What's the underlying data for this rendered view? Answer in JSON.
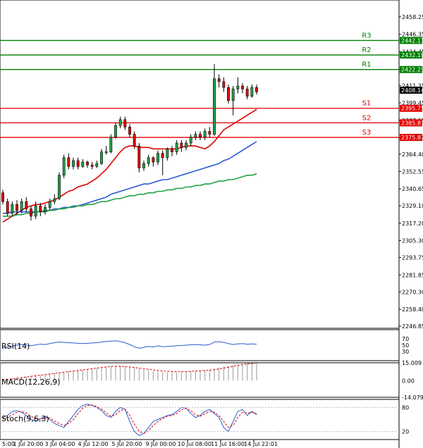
{
  "chart_data": {
    "type": "candlestick",
    "instrument_price_last": "2408.14",
    "y_axis": {
      "min": 2246.85,
      "max": 2464.0,
      "ticks": [
        "2458.25",
        "2446.35",
        "2434.45",
        "2422.55",
        "2411.35",
        "2399.45",
        "2387.55",
        "2375.65",
        "2364.40",
        "2352.55",
        "2340.65",
        "2329.10",
        "2317.20",
        "2305.30",
        "2293.75",
        "2281.85",
        "2270.30",
        "2258.40",
        "2246.85"
      ]
    },
    "x_axis": {
      "ticks": [
        "5:00",
        "1 Jul 20:00",
        "3 Jul 04:00",
        "4 Jul 12:00",
        "5 Jul 20:00",
        "9 Jul 00:00",
        "10 Jul 08:00",
        "11 Jul 16:00",
        "14 Jul 22:01"
      ]
    },
    "levels": [
      {
        "name": "R3",
        "value": 2442.13,
        "label": "2442.13",
        "color": "#008000"
      },
      {
        "name": "R2",
        "value": 2432.19,
        "label": "2432.19",
        "color": "#008000"
      },
      {
        "name": "R1",
        "value": 2422.25,
        "label": "2422.25",
        "color": "#008000"
      },
      {
        "name": "S1",
        "value": 2395.75,
        "label": "2395.75",
        "color": "#e00000"
      },
      {
        "name": "S2",
        "value": 2385.81,
        "label": "2385.81",
        "color": "#e00000"
      },
      {
        "name": "S3",
        "value": 2375.87,
        "label": "2375.87",
        "color": "#e00000"
      }
    ],
    "candles": [
      [
        2338,
        2332,
        2340,
        2330
      ],
      [
        2332,
        2324,
        2334,
        2322
      ],
      [
        2324,
        2330,
        2332,
        2322
      ],
      [
        2330,
        2326,
        2333,
        2323
      ],
      [
        2326,
        2332,
        2334,
        2324
      ],
      [
        2332,
        2327,
        2335,
        2325
      ],
      [
        2327,
        2322,
        2329,
        2319
      ],
      [
        2322,
        2329,
        2332,
        2320
      ],
      [
        2329,
        2325,
        2331,
        2322
      ],
      [
        2325,
        2328,
        2330,
        2323
      ],
      [
        2328,
        2332,
        2334,
        2326
      ],
      [
        2332,
        2334,
        2337,
        2330
      ],
      [
        2334,
        2350,
        2352,
        2333
      ],
      [
        2350,
        2362,
        2364,
        2348
      ],
      [
        2362,
        2356,
        2365,
        2354
      ],
      [
        2356,
        2360,
        2362,
        2354
      ],
      [
        2360,
        2356,
        2362,
        2354
      ],
      [
        2356,
        2359,
        2361,
        2355
      ],
      [
        2359,
        2357,
        2360,
        2355
      ],
      [
        2357,
        2356,
        2359,
        2354
      ],
      [
        2356,
        2358,
        2360,
        2355
      ],
      [
        2358,
        2366,
        2368,
        2357
      ],
      [
        2366,
        2366,
        2370,
        2364
      ],
      [
        2366,
        2376,
        2378,
        2365
      ],
      [
        2376,
        2384,
        2386,
        2375
      ],
      [
        2384,
        2388,
        2390,
        2382
      ],
      [
        2388,
        2383,
        2390,
        2381
      ],
      [
        2383,
        2378,
        2385,
        2376
      ],
      [
        2378,
        2370,
        2380,
        2368
      ],
      [
        2370,
        2355,
        2372,
        2352
      ],
      [
        2355,
        2358,
        2360,
        2353
      ],
      [
        2358,
        2362,
        2364,
        2356
      ],
      [
        2362,
        2359,
        2363,
        2356
      ],
      [
        2359,
        2365,
        2367,
        2357
      ],
      [
        2365,
        2362,
        2367,
        2350
      ],
      [
        2362,
        2368,
        2369,
        2360
      ],
      [
        2368,
        2366,
        2370,
        2363
      ],
      [
        2366,
        2372,
        2374,
        2364
      ],
      [
        2372,
        2369,
        2374,
        2366
      ],
      [
        2369,
        2372,
        2374,
        2367
      ],
      [
        2372,
        2376,
        2378,
        2370
      ],
      [
        2376,
        2378,
        2380,
        2374
      ],
      [
        2378,
        2376,
        2380,
        2374
      ],
      [
        2376,
        2380,
        2382,
        2374
      ],
      [
        2380,
        2378,
        2383,
        2376
      ],
      [
        2378,
        2416,
        2426,
        2377
      ],
      [
        2416,
        2414,
        2419,
        2410
      ],
      [
        2414,
        2410,
        2417,
        2407
      ],
      [
        2410,
        2401,
        2412,
        2399
      ],
      [
        2401,
        2409,
        2411,
        2391
      ],
      [
        2409,
        2411,
        2417,
        2406
      ],
      [
        2411,
        2409,
        2413,
        2406
      ],
      [
        2409,
        2404,
        2411,
        2402
      ],
      [
        2404,
        2410,
        2412,
        2403
      ],
      [
        2410,
        2407,
        2412,
        2405
      ]
    ],
    "moving_averages": [
      {
        "name": "MA red",
        "color": "#e00000",
        "values": [
          2318,
          2320,
          2322,
          2324,
          2326,
          2328,
          2329,
          2330,
          2330,
          2331,
          2332,
          2333,
          2335,
          2337,
          2339,
          2340,
          2342,
          2343,
          2344,
          2346,
          2348,
          2351,
          2354,
          2358,
          2362,
          2366,
          2369,
          2370,
          2370,
          2369,
          2369,
          2369,
          2368,
          2368,
          2368,
          2368,
          2368,
          2368,
          2369,
          2370,
          2370,
          2370,
          2369,
          2368,
          2370,
          2373,
          2377,
          2381,
          2383,
          2385,
          2387,
          2389,
          2391,
          2393,
          2395
        ]
      },
      {
        "name": "MA blue",
        "color": "#2b5bd1",
        "values": [
          2324,
          2324,
          2325,
          2325,
          2325,
          2325,
          2325,
          2325,
          2325,
          2326,
          2326,
          2327,
          2327,
          2328,
          2328,
          2329,
          2329,
          2330,
          2331,
          2332,
          2333,
          2334,
          2335,
          2337,
          2338,
          2339,
          2340,
          2341,
          2342,
          2343,
          2344,
          2344,
          2345,
          2346,
          2347,
          2347,
          2348,
          2349,
          2350,
          2351,
          2352,
          2353,
          2354,
          2355,
          2356,
          2357,
          2358,
          2360,
          2361,
          2363,
          2365,
          2367,
          2369,
          2371,
          2373
        ]
      },
      {
        "name": "MA green",
        "color": "#22a245",
        "values": [
          2322,
          2322,
          2322,
          2323,
          2323,
          2324,
          2324,
          2325,
          2325,
          2325,
          2326,
          2326,
          2327,
          2327,
          2328,
          2328,
          2329,
          2329,
          2330,
          2330,
          2331,
          2332,
          2332,
          2333,
          2334,
          2334,
          2335,
          2336,
          2336,
          2337,
          2337,
          2338,
          2338,
          2339,
          2339,
          2340,
          2340,
          2341,
          2341,
          2342,
          2342,
          2343,
          2343,
          2344,
          2344,
          2345,
          2346,
          2346,
          2347,
          2347,
          2348,
          2349,
          2350,
          2350,
          2351
        ]
      }
    ],
    "rsi": {
      "label": "RSI(14)",
      "ticks": [
        "70",
        "50",
        "30"
      ],
      "color": "#2b5bd1",
      "values": [
        40,
        44,
        47,
        50,
        52,
        50,
        48,
        51,
        53,
        52,
        55,
        58,
        60,
        59,
        58,
        57,
        56,
        55,
        56,
        57,
        58,
        60,
        62,
        63,
        64,
        62,
        58,
        52,
        45,
        40,
        43,
        46,
        44,
        48,
        45,
        46,
        47,
        48,
        49,
        50,
        51,
        52,
        51,
        50,
        52,
        60,
        61,
        59,
        55,
        52,
        54,
        55,
        53,
        54,
        53
      ]
    },
    "macd": {
      "label": "MACD(12,26,9)",
      "ticks": [
        "15.009",
        "0.00",
        "-14.079"
      ],
      "hist": [
        1,
        1.5,
        2,
        2.5,
        3,
        3.5,
        4,
        4.2,
        4.5,
        5,
        5.5,
        6,
        6.5,
        7,
        7.5,
        8,
        8.5,
        9,
        9.5,
        10,
        10.5,
        11,
        11.5,
        12,
        12.5,
        12.5,
        12,
        11.5,
        11,
        10,
        9,
        8.5,
        8,
        7.5,
        7,
        7,
        7,
        7,
        7.2,
        7.5,
        7.8,
        8,
        8.2,
        8.5,
        9,
        10,
        11,
        12,
        12.5,
        13,
        13.5,
        14,
        14.5,
        14.8,
        15
      ],
      "signal": [
        0.5,
        1,
        1.5,
        2,
        2.5,
        3,
        3.5,
        4,
        4.5,
        5,
        5.5,
        6,
        6.5,
        7,
        7.5,
        8,
        8.5,
        9,
        9.5,
        10,
        10.5,
        11,
        11.5,
        12,
        12,
        12,
        11.8,
        11.5,
        11,
        10.5,
        10,
        9.5,
        9,
        8.5,
        8,
        7.8,
        7.6,
        7.5,
        7.5,
        7.6,
        7.8,
        8,
        8.2,
        8.5,
        8.8,
        9.2,
        9.8,
        10.5,
        11.2,
        12,
        12.8,
        13.5,
        14,
        14.4,
        14.8
      ]
    },
    "stoch": {
      "label": "Stoch(9,6,3)",
      "ticks": [
        "80",
        "20"
      ],
      "main_color": "#2b5bd1",
      "signal_color": "#e00000",
      "main": [
        55,
        60,
        70,
        72,
        68,
        60,
        50,
        45,
        52,
        58,
        50,
        40,
        35,
        30,
        45,
        60,
        75,
        85,
        88,
        85,
        80,
        72,
        60,
        55,
        70,
        80,
        75,
        45,
        20,
        10,
        15,
        30,
        45,
        50,
        55,
        60,
        62,
        70,
        80,
        78,
        65,
        55,
        60,
        70,
        75,
        65,
        55,
        30,
        20,
        45,
        70,
        75,
        60,
        70,
        62
      ],
      "signal": [
        50,
        55,
        62,
        68,
        70,
        66,
        58,
        52,
        50,
        54,
        54,
        46,
        40,
        35,
        40,
        50,
        65,
        78,
        85,
        86,
        82,
        76,
        66,
        58,
        62,
        72,
        76,
        60,
        38,
        20,
        15,
        22,
        35,
        45,
        52,
        58,
        60,
        65,
        74,
        78,
        72,
        62,
        58,
        64,
        70,
        68,
        60,
        45,
        30,
        35,
        55,
        68,
        66,
        68,
        64
      ]
    }
  }
}
